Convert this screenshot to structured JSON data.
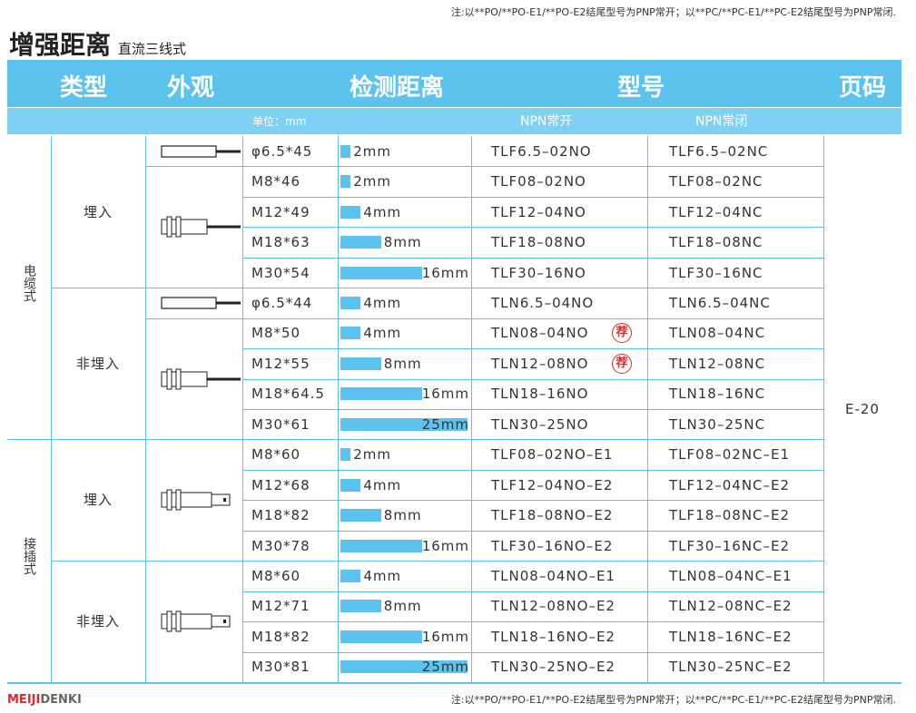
{
  "note": "注:以**PO/**PO-E1/**PO-E2结尾型号为PNP常开；以**PC/**PC-E1/**PC-E2结尾型号为PNP常闭.",
  "title": "增强距离",
  "subtitle": "直流三线式",
  "header": {
    "type": "类型",
    "appearance": "外观",
    "range": "检测距离",
    "model": "型号",
    "page": "页码",
    "unit": "单位：mm",
    "npn_no": "NPN常开",
    "npn_nc": "NPN常闭"
  },
  "groups": [
    {
      "label": "电缆式",
      "subgroups": [
        {
          "label": "埋入",
          "rows": [
            {
              "size": "φ6.5*45",
              "range": 2,
              "range_label": "2mm",
              "no": "TLF6.5–02NO",
              "nc": "TLF6.5–02NC"
            },
            {
              "size": "M8*46",
              "range": 2,
              "range_label": "2mm",
              "no": "TLF08–02NO",
              "nc": "TLF08–02NC"
            },
            {
              "size": "M12*49",
              "range": 4,
              "range_label": "4mm",
              "no": "TLF12–04NO",
              "nc": "TLF12–04NC"
            },
            {
              "size": "M18*63",
              "range": 8,
              "range_label": "8mm",
              "no": "TLF18–08NO",
              "nc": "TLF18–08NC"
            },
            {
              "size": "M30*54",
              "range": 16,
              "range_label": "16mm",
              "no": "TLF30–16NO",
              "nc": "TLF30–16NC"
            }
          ]
        },
        {
          "label": "非埋入",
          "rows": [
            {
              "size": "φ6.5*44",
              "range": 4,
              "range_label": "4mm",
              "no": "TLN6.5–04NO",
              "nc": "TLN6.5–04NC"
            },
            {
              "size": "M8*50",
              "range": 4,
              "range_label": "4mm",
              "no": "TLN08–04NO",
              "badge": "荐",
              "nc": "TLN08–04NC"
            },
            {
              "size": "M12*55",
              "range": 8,
              "range_label": "8mm",
              "no": "TLN12–08NO",
              "badge": "荐",
              "nc": "TLN12–08NC"
            },
            {
              "size": "M18*64.5",
              "range": 16,
              "range_label": "16mm",
              "no": "TLN18–16NO",
              "nc": "TLN18–16NC"
            },
            {
              "size": "M30*61",
              "range": 25,
              "range_label": "25mm",
              "no": "TLN30–25NO",
              "nc": "TLN30–25NC"
            }
          ]
        }
      ]
    },
    {
      "label": "接插式",
      "subgroups": [
        {
          "label": "埋入",
          "rows": [
            {
              "size": "M8*60",
              "range": 2,
              "range_label": "2mm",
              "no": "TLF08–02NO–E1",
              "nc": "TLF08–02NC–E1"
            },
            {
              "size": "M12*68",
              "range": 4,
              "range_label": "4mm",
              "no": "TLF12–04NO–E2",
              "nc": "TLF12–04NC–E2"
            },
            {
              "size": "M18*82",
              "range": 8,
              "range_label": "8mm",
              "no": "TLF18–08NO–E2",
              "nc": "TLF18–08NC–E2"
            },
            {
              "size": "M30*78",
              "range": 16,
              "range_label": "16mm",
              "no": "TLF30–16NO–E2",
              "nc": "TLF30–16NC–E2"
            }
          ]
        },
        {
          "label": "非埋入",
          "rows": [
            {
              "size": "M8*60",
              "range": 4,
              "range_label": "4mm",
              "no": "TLN08–04NO–E1",
              "nc": "TLN08–04NC–E1"
            },
            {
              "size": "M12*71",
              "range": 8,
              "range_label": "8mm",
              "no": "TLN12–08NO–E2",
              "nc": "TLN12–08NC–E2"
            },
            {
              "size": "M18*82",
              "range": 16,
              "range_label": "16mm",
              "no": "TLN18–16NO–E2",
              "nc": "TLN18–16NC–E2"
            },
            {
              "size": "M30*81",
              "range": 25,
              "range_label": "25mm",
              "no": "TLN30–25NO–E2",
              "nc": "TLN30–25NC–E2"
            }
          ]
        }
      ]
    }
  ],
  "page": "E-20",
  "footer": {
    "brand_a": "MEIJI",
    "brand_b": "DENKI",
    "note": "注:以**PO/**PO-E1/**PO-E2结尾型号为PNP常开；以**PC/**PC-E1/**PC-E2结尾型号为PNP常闭."
  }
}
